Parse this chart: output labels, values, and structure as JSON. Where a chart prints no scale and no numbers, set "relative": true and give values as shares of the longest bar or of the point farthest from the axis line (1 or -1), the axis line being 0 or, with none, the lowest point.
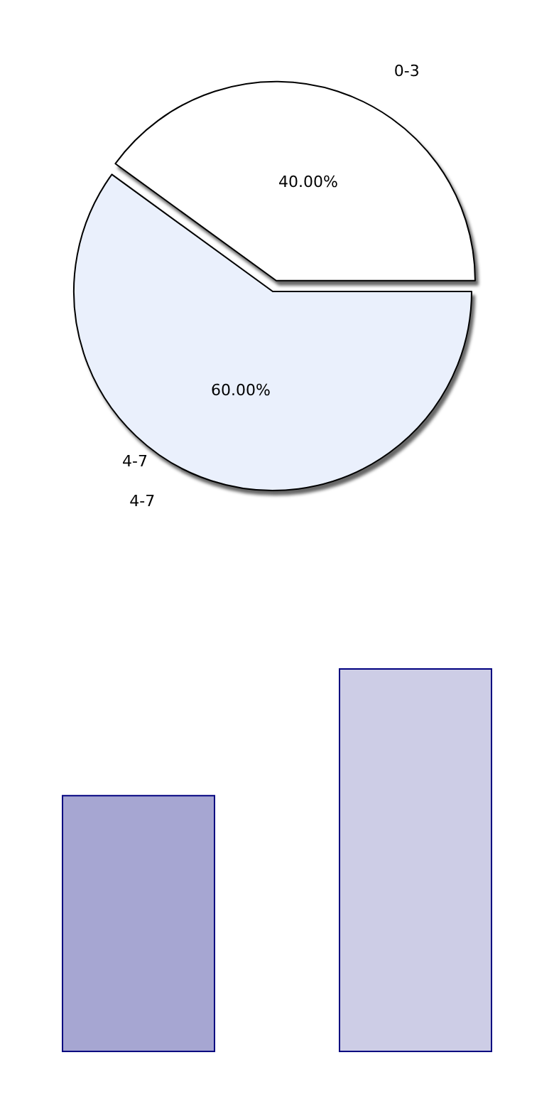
{
  "chart_data": [
    {
      "type": "pie",
      "categories": [
        "0-3",
        "4-7"
      ],
      "values": [
        40,
        60
      ],
      "colors": [
        "#ffffff",
        "#eaf0fc"
      ],
      "value_labels": [
        "40.00%",
        "60.00%"
      ],
      "annotations": [
        "4-7"
      ],
      "legend": false
    },
    {
      "type": "bar",
      "categories": [
        null,
        null
      ],
      "values": [
        0.67,
        1
      ],
      "colors": [
        "#a6a6d2",
        "#cdcde6"
      ],
      "relative": true,
      "legend": false
    }
  ]
}
